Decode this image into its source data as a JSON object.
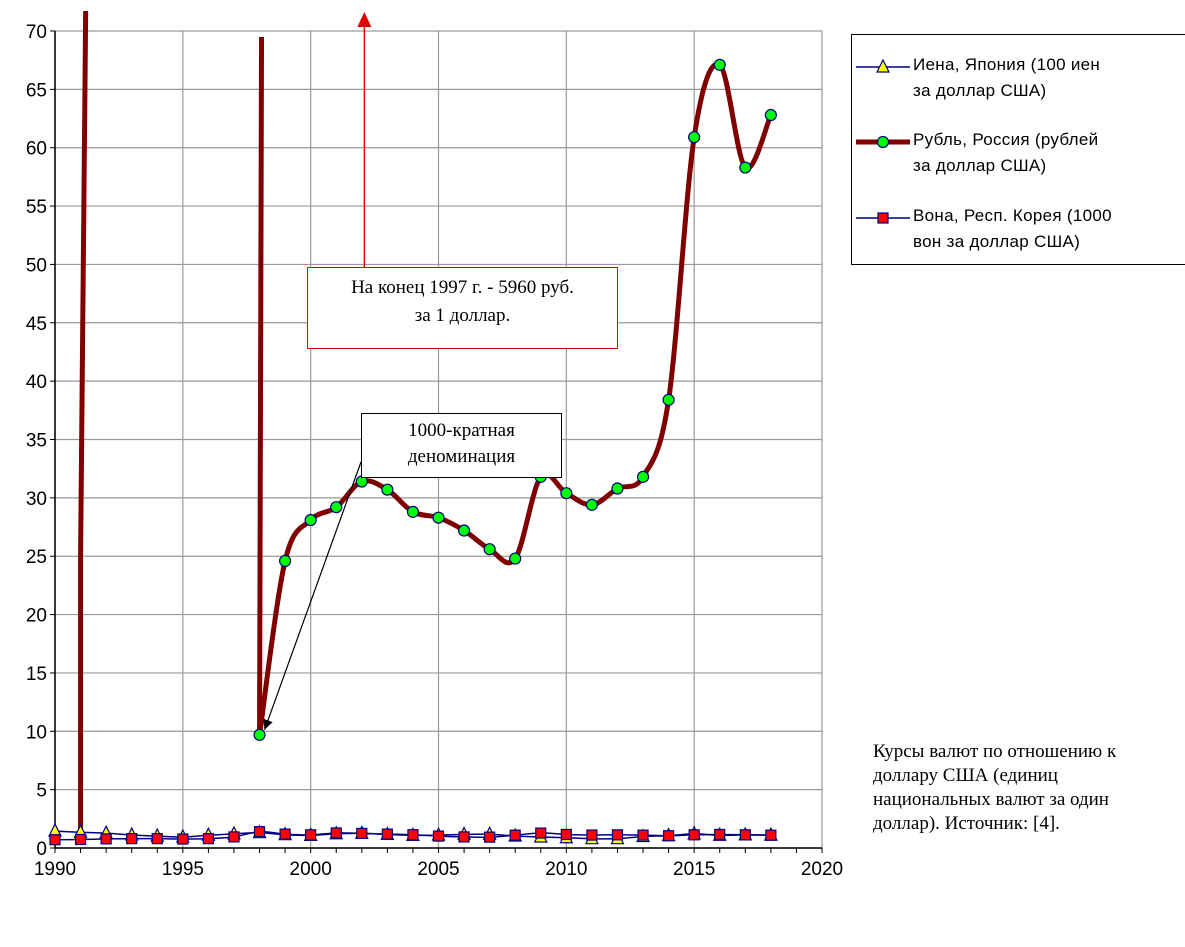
{
  "chart_data": {
    "type": "line",
    "x_ticks": [
      "1990",
      "1995",
      "2000",
      "2005",
      "2010",
      "2015",
      "2020"
    ],
    "y_ticks": [
      "0",
      "5",
      "10",
      "15",
      "20",
      "25",
      "30",
      "35",
      "40",
      "45",
      "50",
      "55",
      "60",
      "65",
      "70"
    ],
    "xlim": [
      1990,
      2020
    ],
    "ylim": [
      0,
      70
    ],
    "grid": true,
    "legend_position": "top-right",
    "series": [
      {
        "name": "Иена, Япония  (100 иен за доллар США)",
        "label_lines": [
          "Иена, Япония  (100 иен",
          "за доллар США)"
        ],
        "color": "#000080",
        "marker": "triangle",
        "marker_color": "#ffff00",
        "x": [
          1990,
          1991,
          1992,
          1993,
          1994,
          1995,
          1996,
          1997,
          1998,
          1999,
          2000,
          2001,
          2002,
          2003,
          2004,
          2005,
          2006,
          2007,
          2008,
          2009,
          2010,
          2011,
          2012,
          2013,
          2014,
          2015,
          2016,
          2017,
          2018
        ],
        "values": [
          1.45,
          1.35,
          1.27,
          1.11,
          1.02,
          0.94,
          1.09,
          1.21,
          1.31,
          1.14,
          1.08,
          1.22,
          1.25,
          1.16,
          1.08,
          1.1,
          1.16,
          1.18,
          1.03,
          0.94,
          0.88,
          0.8,
          0.8,
          0.98,
          1.06,
          1.21,
          1.09,
          1.12,
          1.1
        ]
      },
      {
        "name": "Рубль, Россия (рублей за доллар США)",
        "label_lines": [
          "Рубль, Россия (рублей",
          "за доллар США)"
        ],
        "color": "#800000",
        "marker": "circle",
        "marker_color": "#00ff00",
        "x": [
          1998,
          1999,
          2000,
          2001,
          2002,
          2003,
          2004,
          2005,
          2006,
          2007,
          2008,
          2009,
          2010,
          2011,
          2012,
          2013,
          2014,
          2015,
          2016,
          2017,
          2018
        ],
        "values": [
          9.7,
          24.6,
          28.1,
          29.2,
          31.4,
          30.7,
          28.8,
          28.3,
          27.2,
          25.6,
          24.8,
          31.8,
          30.4,
          29.4,
          30.8,
          31.8,
          38.4,
          60.9,
          67.1,
          58.3,
          62.8
        ]
      },
      {
        "name": "Вона, Респ. Корея (1000 вон за доллар США)",
        "label_lines": [
          "Вона, Респ. Корея (1000",
          "вон за доллар США)"
        ],
        "color": "#000080",
        "marker": "square",
        "marker_color": "#ff0000",
        "x": [
          1990,
          1991,
          1992,
          1993,
          1994,
          1995,
          1996,
          1997,
          1998,
          1999,
          2000,
          2001,
          2002,
          2003,
          2004,
          2005,
          2006,
          2007,
          2008,
          2009,
          2010,
          2011,
          2012,
          2013,
          2014,
          2015,
          2016,
          2017,
          2018
        ],
        "values": [
          0.71,
          0.73,
          0.78,
          0.8,
          0.8,
          0.77,
          0.8,
          0.95,
          1.4,
          1.19,
          1.13,
          1.29,
          1.25,
          1.19,
          1.14,
          1.02,
          0.95,
          0.93,
          1.1,
          1.28,
          1.16,
          1.11,
          1.13,
          1.1,
          1.05,
          1.13,
          1.16,
          1.13,
          1.1
        ]
      }
    ],
    "annotations": {
      "red_callout_lines": [
        "На конец 1997 г. - 5960 руб.",
        "за 1 доллар."
      ],
      "black_callout_lines": [
        "1000-кратная",
        "деноминация"
      ]
    },
    "note_lines": [
      "Курсы валют по отношению к",
      "доллару США (единиц",
      "национальных валют за один",
      "доллар). Источник: [4]."
    ]
  }
}
